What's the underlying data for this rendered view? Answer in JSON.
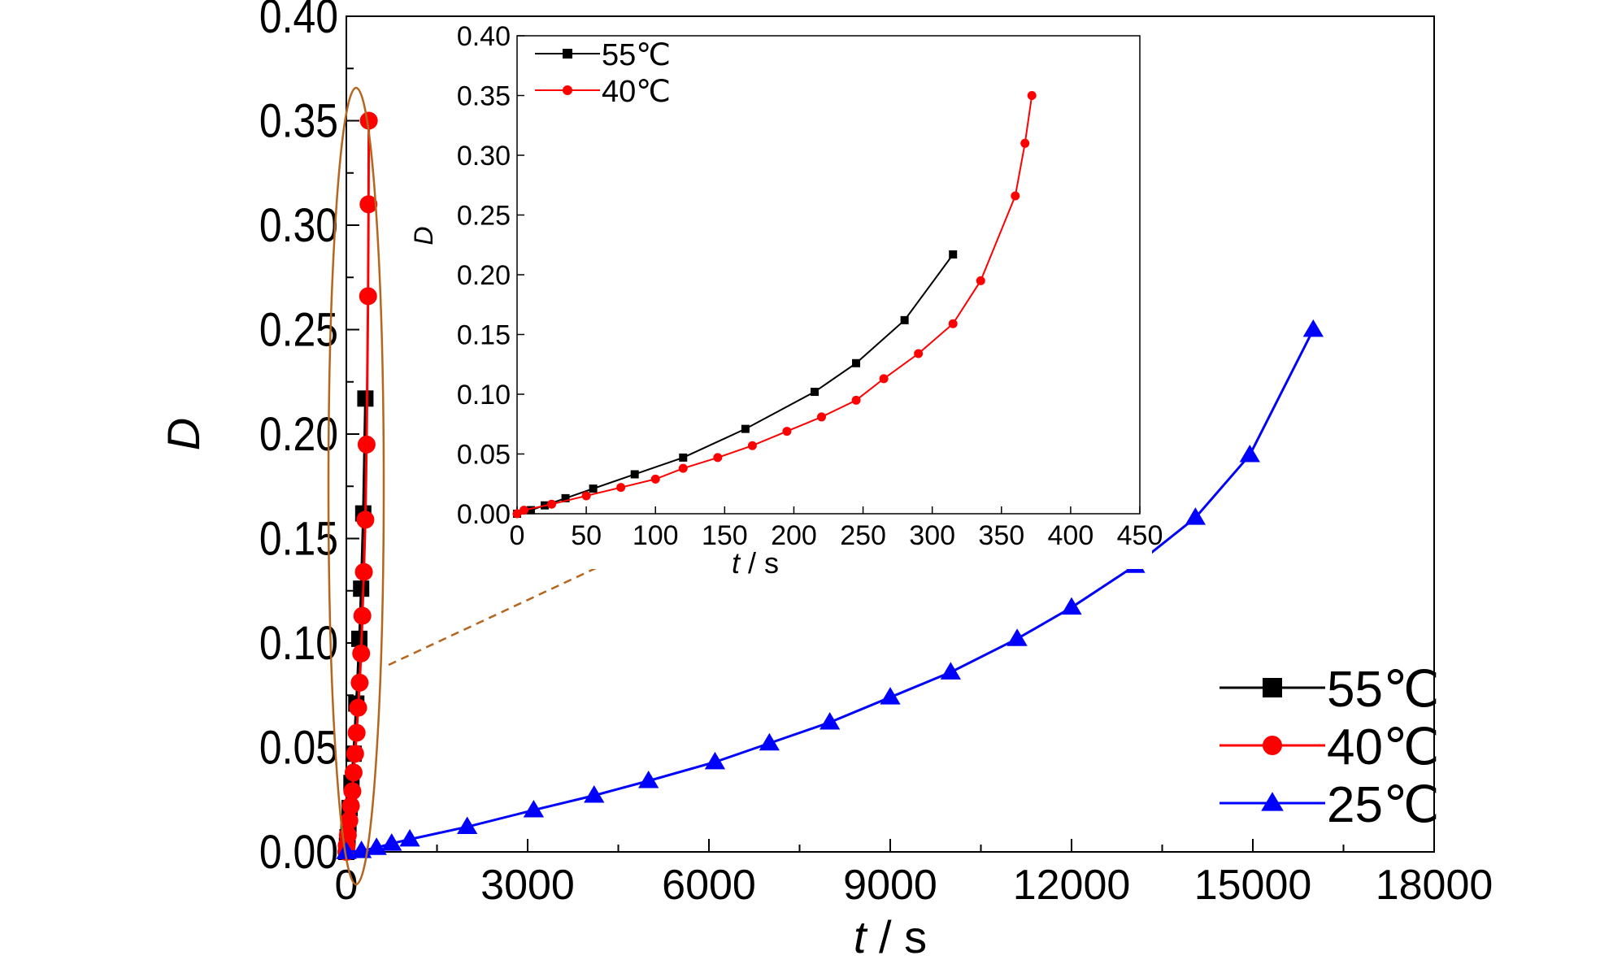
{
  "chart_data": [
    {
      "type": "line",
      "role": "main",
      "xlabel_italic": "t",
      "xlabel_rest": " / s",
      "ylabel": "D",
      "xlim": [
        0,
        18000
      ],
      "ylim": [
        0,
        0.4
      ],
      "xticks": [
        0,
        3000,
        6000,
        9000,
        12000,
        15000,
        18000
      ],
      "xtick_labels": [
        "0",
        "3000",
        "6000",
        "9000",
        "12000",
        "15000",
        "18000"
      ],
      "yticks": [
        0,
        0.05,
        0.1,
        0.15,
        0.2,
        0.25,
        0.3,
        0.35,
        0.4
      ],
      "ytick_labels": [
        "0.00",
        "0.05",
        "0.10",
        "0.15",
        "0.20",
        "0.25",
        "0.30",
        "0.35",
        "0.40"
      ],
      "legend_position": "bottom-right",
      "series": [
        {
          "name": "55℃",
          "color": "#000000",
          "marker": "square",
          "x": [
            0,
            10,
            20,
            35,
            55,
            85,
            120,
            165,
            215,
            245,
            280,
            315
          ],
          "y": [
            0,
            0.003,
            0.007,
            0.013,
            0.021,
            0.033,
            0.047,
            0.071,
            0.102,
            0.126,
            0.162,
            0.217
          ]
        },
        {
          "name": "40℃",
          "color": "#ff0000",
          "marker": "circle",
          "x": [
            0,
            5,
            25,
            50,
            75,
            100,
            120,
            145,
            170,
            195,
            220,
            245,
            265,
            290,
            315,
            335,
            360,
            367,
            372
          ],
          "y": [
            0,
            0.003,
            0.008,
            0.015,
            0.022,
            0.029,
            0.038,
            0.047,
            0.057,
            0.069,
            0.081,
            0.095,
            0.113,
            0.134,
            0.159,
            0.195,
            0.266,
            0.31,
            0.35
          ]
        },
        {
          "name": "25℃",
          "color": "#0000ff",
          "marker": "triangle",
          "x": [
            0,
            250,
            500,
            750,
            1050,
            2000,
            3100,
            4100,
            5000,
            6100,
            7000,
            8000,
            9000,
            10000,
            11100,
            12000,
            13050,
            14050,
            14950,
            16000
          ],
          "y": [
            0,
            0.0005,
            0.002,
            0.004,
            0.006,
            0.012,
            0.02,
            0.027,
            0.034,
            0.043,
            0.052,
            0.062,
            0.074,
            0.086,
            0.102,
            0.117,
            0.137,
            0.16,
            0.19,
            0.25
          ]
        }
      ]
    },
    {
      "type": "line",
      "role": "inset",
      "xlabel_italic": "t",
      "xlabel_rest": " / s",
      "ylabel": "D",
      "xlim": [
        0,
        450
      ],
      "ylim": [
        0,
        0.4
      ],
      "xticks": [
        0,
        50,
        100,
        150,
        200,
        250,
        300,
        350,
        400,
        450
      ],
      "xtick_labels": [
        "0",
        "50",
        "100",
        "150",
        "200",
        "250",
        "300",
        "350",
        "400",
        "450"
      ],
      "yticks": [
        0,
        0.05,
        0.1,
        0.15,
        0.2,
        0.25,
        0.3,
        0.35,
        0.4
      ],
      "ytick_labels": [
        "0.00",
        "0.05",
        "0.10",
        "0.15",
        "0.20",
        "0.25",
        "0.30",
        "0.35",
        "0.40"
      ],
      "legend_position": "top-left",
      "series_names": [
        "55℃",
        "40℃"
      ]
    }
  ],
  "colors": {
    "highlight_ellipse": "#b5651d",
    "arrow": "#b5651d"
  }
}
